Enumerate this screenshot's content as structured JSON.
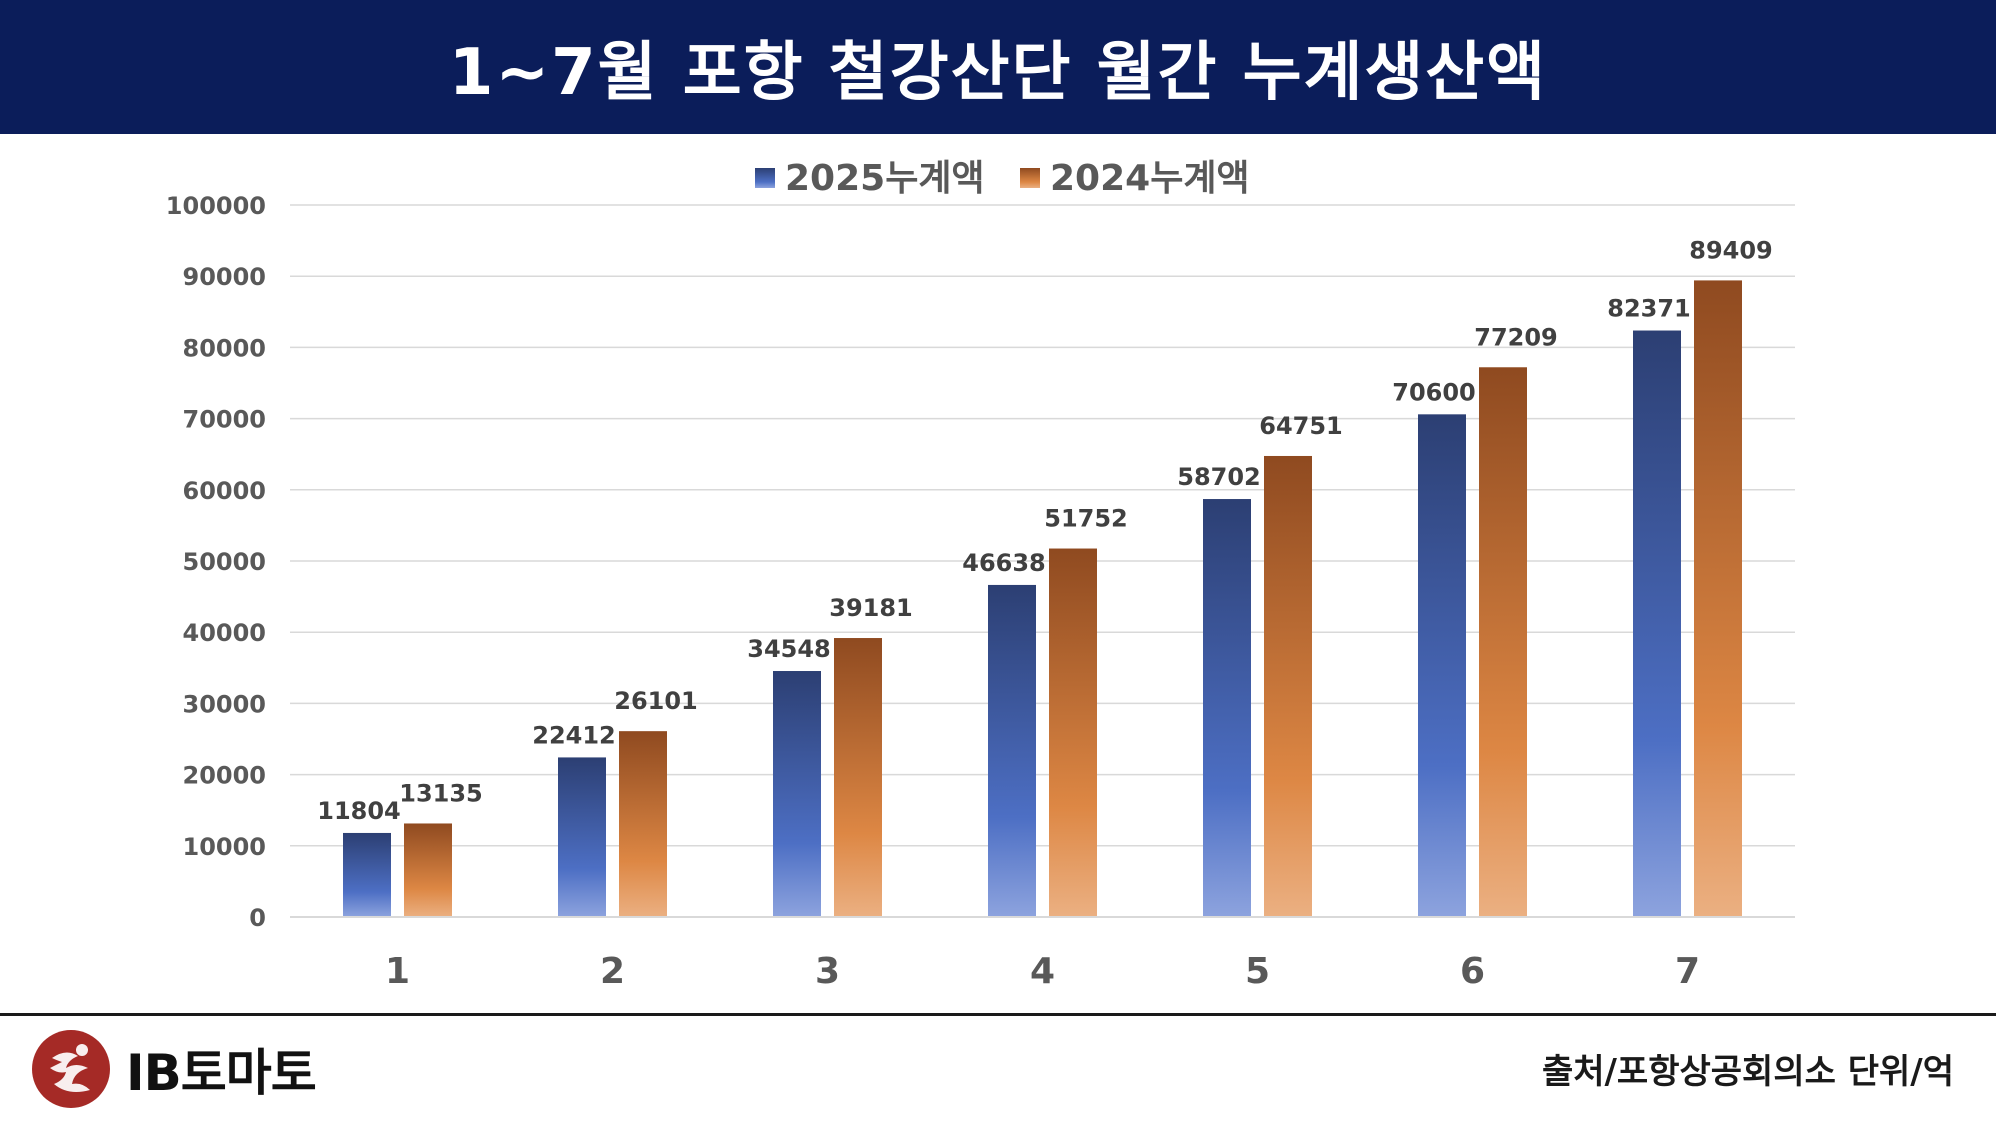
{
  "header": {
    "title": "1~7월 포항 철강산단 월간 누계생산액"
  },
  "chart_data": {
    "type": "bar",
    "categories": [
      "1",
      "2",
      "3",
      "4",
      "5",
      "6",
      "7"
    ],
    "series": [
      {
        "name": "2025누계액",
        "values": [
          11804,
          22412,
          34548,
          46638,
          58702,
          70600,
          82371
        ]
      },
      {
        "name": "2024누계액",
        "values": [
          13135,
          26101,
          39181,
          51752,
          64751,
          77209,
          89409
        ]
      }
    ],
    "yticks": [
      "0",
      "10000",
      "20000",
      "30000",
      "40000",
      "50000",
      "60000",
      "70000",
      "80000",
      "90000",
      "100000"
    ],
    "ylim": [
      0,
      100000
    ],
    "grid": true,
    "legend": "top-center",
    "colors": {
      "series0_top": "#2c3f73",
      "series0_mid": "#4d6fc4",
      "series0_bottom": "#8da3de",
      "series1_top": "#8f4a20",
      "series1_mid": "#dd8744",
      "series1_bottom": "#ebb082",
      "grid": "#d9d9d9",
      "label": "#404040",
      "axis_text": "#595959"
    }
  },
  "footer": {
    "logo_text": "IB토마토",
    "source": "출처/포항상공회의소 단위/억",
    "colors": {
      "logo": "#a52a26"
    }
  }
}
